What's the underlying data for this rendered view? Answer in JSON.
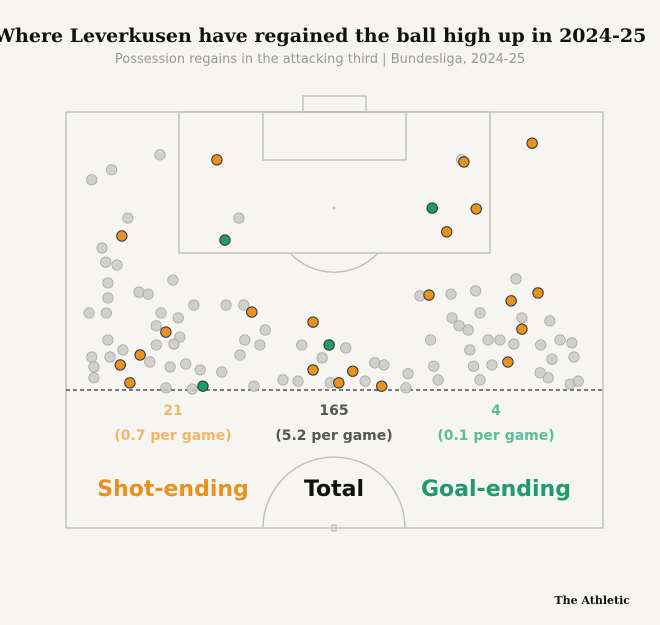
{
  "chart_data": {
    "type": "scatter",
    "title": "Where Leverkusen have regained the ball high up in 2024-25",
    "subtitle": "Possession regains in the attacking third | Bundesliga, 2024-25",
    "source": "The Athletic",
    "xlim": [
      0,
      100
    ],
    "ylim": [
      0,
      100
    ],
    "series": [
      {
        "color": "#c9c9c7",
        "x": [
          17.5,
          4.8,
          8.5,
          11.5,
          6.7,
          7.4,
          9.5,
          7.8,
          7.8,
          4.3,
          7.5,
          13.6,
          15.3,
          19.9,
          17.7,
          16.8,
          20.9,
          23.8,
          21.2,
          20.1,
          16.8,
          7.8,
          4.8,
          5.2,
          5.2,
          8.2,
          10.6,
          15.6,
          19.4,
          22.3,
          25,
          18.6,
          23.5,
          32.2,
          29.8,
          33.1,
          37.1,
          33.3,
          36.1,
          32.4,
          29,
          35,
          40.4,
          43.9,
          43.2,
          47.7,
          49.2,
          52.1,
          57.5,
          55.7,
          59.2,
          63.7,
          63.3,
          69.3,
          68.5,
          67.9,
          65.9,
          71.7,
          76.3,
          71.9,
          73.2,
          74.9,
          77.1,
          78.6,
          75.2,
          75.9,
          77.1,
          79.3,
          80.8,
          83.8,
          84.9,
          83.4,
          88.4,
          90.5,
          92,
          94.2,
          94.6,
          89.8,
          93.9,
          95.4,
          88.3,
          73.7,
          90.1
        ],
        "y": [
          10.3,
          16.3,
          13.9,
          25.5,
          32.7,
          36.1,
          36.8,
          41.1,
          44.7,
          48.3,
          48.3,
          43.3,
          43.8,
          40.4,
          48.3,
          51.4,
          49.5,
          46.4,
          54.1,
          55.8,
          56,
          54.8,
          58.9,
          61.3,
          63.9,
          58.9,
          57.2,
          60.1,
          61.3,
          60.6,
          62,
          66.3,
          66.6,
          25.5,
          46.4,
          46.4,
          52.4,
          54.8,
          56,
          58.4,
          62.5,
          65.9,
          64.4,
          56,
          64.7,
          59.1,
          65.1,
          56.7,
          60.3,
          64.7,
          60.8,
          62.9,
          66.3,
          64.4,
          61.1,
          54.8,
          44.2,
          43.8,
          43,
          49.5,
          51.4,
          52.4,
          48.3,
          54.8,
          57.2,
          61.1,
          64.4,
          60.8,
          54.8,
          40.1,
          49.5,
          55.8,
          56,
          59.4,
          54.8,
          55.5,
          58.9,
          63.9,
          65.4,
          64.7,
          62.7,
          11.5,
          50.2
        ]
      },
      {
        "name": "Shot-ending",
        "color": "#e8921f",
        "x": [
          28.1,
          10.4,
          74.1,
          86.8,
          76.4,
          70.9,
          67.6,
          82.9,
          87.9,
          34.6,
          46,
          18.6,
          84.9,
          13.8,
          10.1,
          11.9,
          46,
          53.4,
          50.8,
          58.8,
          82.3
        ],
        "y": [
          11.5,
          29.8,
          12,
          7.5,
          23.3,
          28.8,
          44,
          45.4,
          43.5,
          48.1,
          50.5,
          52.9,
          52.2,
          58.4,
          60.8,
          65.1,
          62,
          62.3,
          65.1,
          65.9,
          60.1
        ]
      },
      {
        "name": "Goal-ending",
        "color": "#1f9a73",
        "x": [
          29.6,
          68.2,
          49,
          25.5
        ],
        "y": [
          30.8,
          23.1,
          56,
          65.9
        ]
      }
    ],
    "summary": [
      {
        "label": "Shot-ending",
        "count": 21,
        "rate": "(0.7 per game)",
        "color": "#e8921f",
        "count_color": "#f0b767"
      },
      {
        "label": "Total",
        "count": 165,
        "rate": "(5.2 per game)",
        "color": "#111111",
        "count_color": "#555555"
      },
      {
        "label": "Goal-ending",
        "count": 4,
        "rate": "(0.1 per game)",
        "color": "#1f9a73",
        "count_color": "#5cbb9c"
      }
    ]
  }
}
